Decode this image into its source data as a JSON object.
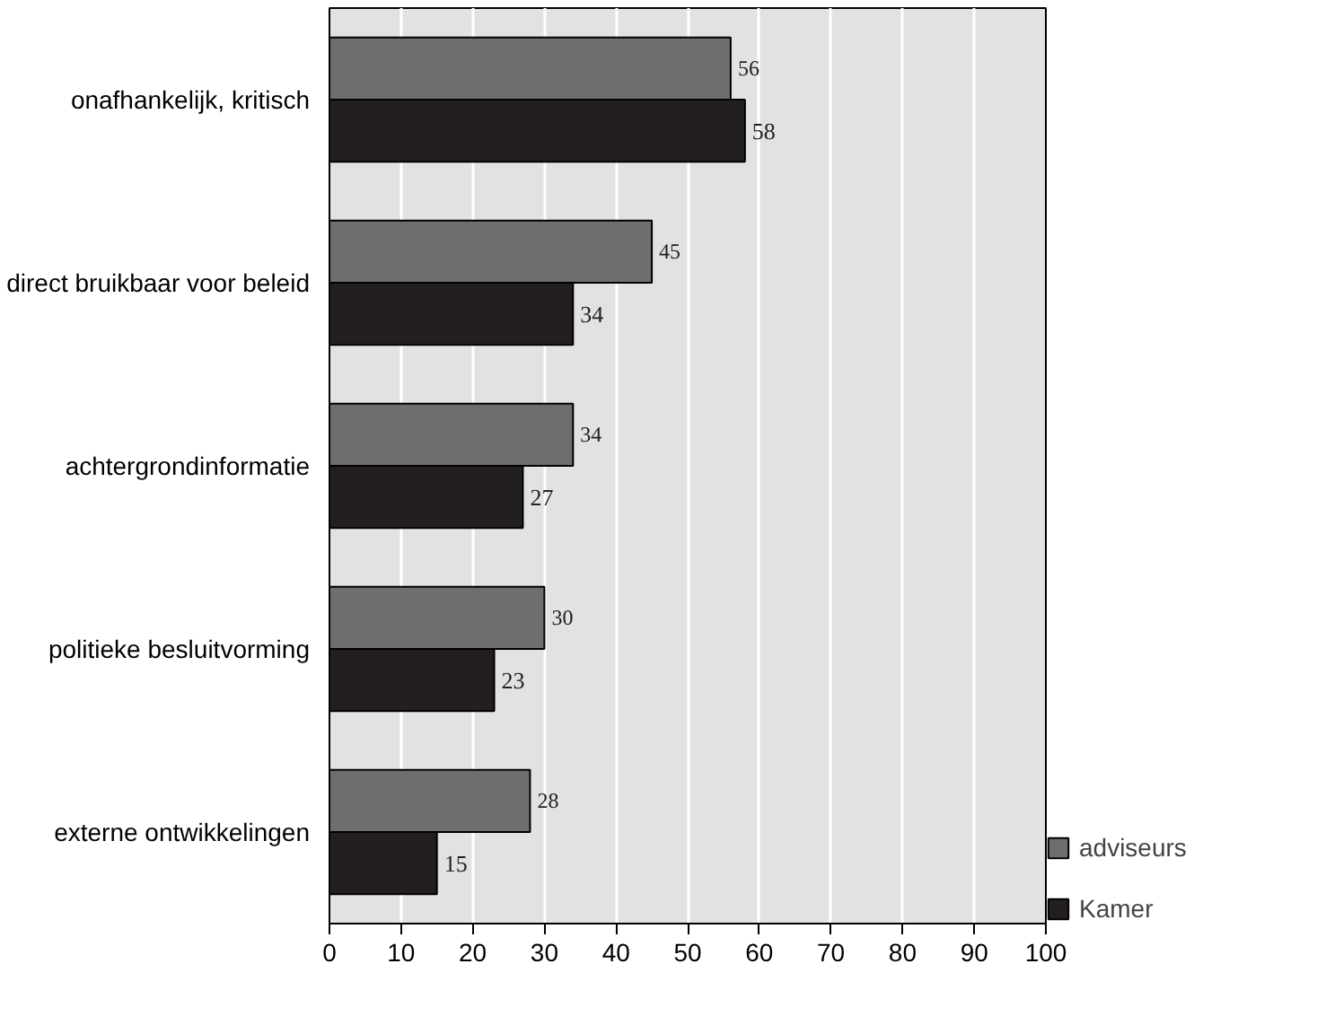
{
  "chart_data": {
    "type": "bar",
    "orientation": "horizontal",
    "categories": [
      "onafhankelijk, kritisch",
      "direct bruikbaar voor beleid",
      "achtergrondinformatie",
      "politieke besluitvorming",
      "externe ontwikkelingen"
    ],
    "series": [
      {
        "name": "adviseurs",
        "color": "#6e6e6e",
        "values": [
          56,
          45,
          34,
          30,
          28
        ]
      },
      {
        "name": "Kamer",
        "color": "#231f20",
        "values": [
          58,
          34,
          27,
          23,
          15
        ]
      }
    ],
    "xlim": [
      0,
      100
    ],
    "xticks": [
      0,
      10,
      20,
      30,
      40,
      50,
      60,
      70,
      80,
      90,
      100
    ],
    "grid": "x",
    "legend": "bottom right",
    "data_labels": true
  }
}
